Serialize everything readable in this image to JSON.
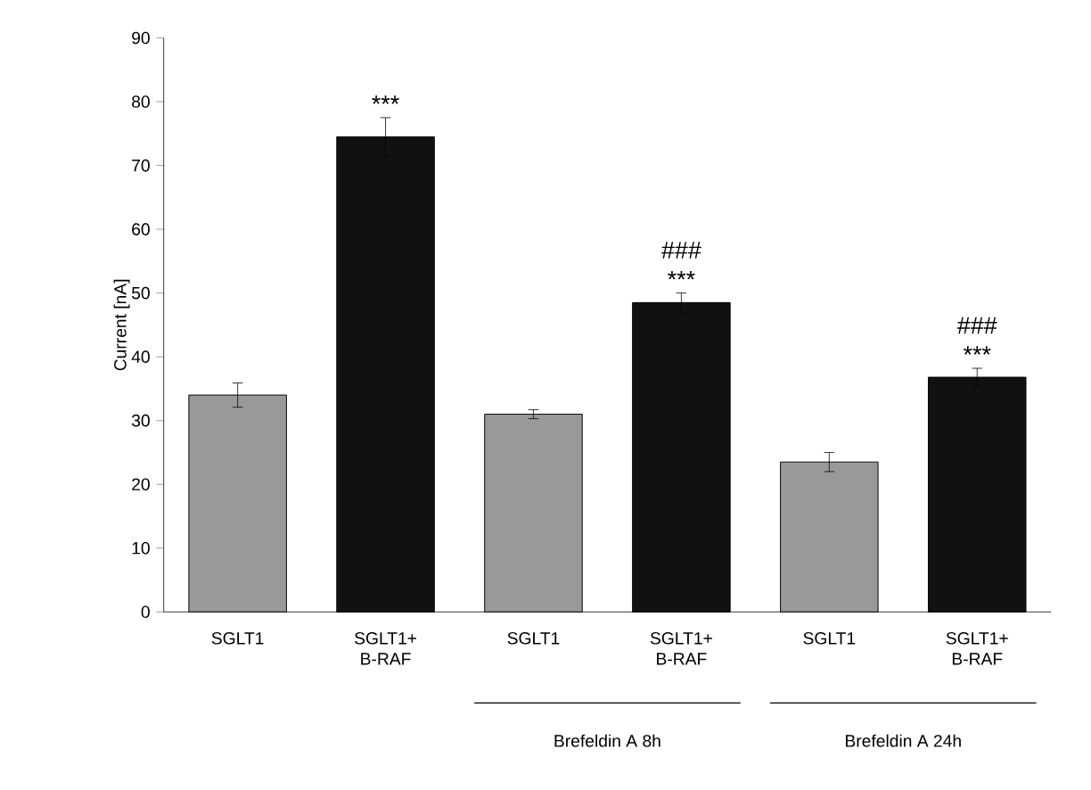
{
  "chart_data": {
    "type": "bar",
    "ylabel": "Current [nA]",
    "categories": [
      "SGLT1",
      "SGLT1+ B-RAF",
      "SGLT1",
      "SGLT1+ B-RAF",
      "SGLT1",
      "SGLT1+ B-RAF"
    ],
    "values": [
      34,
      74.5,
      31,
      48.5,
      23.5,
      36.8
    ],
    "errors": [
      1.9,
      3,
      0.7,
      1.5,
      1.5,
      1.4
    ],
    "colors": [
      "#999999",
      "#111111",
      "#999999",
      "#111111",
      "#999999",
      "#111111"
    ],
    "ylim": [
      0,
      90
    ],
    "yticks": [
      0,
      10,
      20,
      30,
      40,
      50,
      60,
      70,
      80,
      90
    ],
    "annotations": [
      "***",
      "###",
      "***",
      "###",
      "***",
      "Brefeldin A  8h",
      "Brefeldin A 24h"
    ]
  }
}
